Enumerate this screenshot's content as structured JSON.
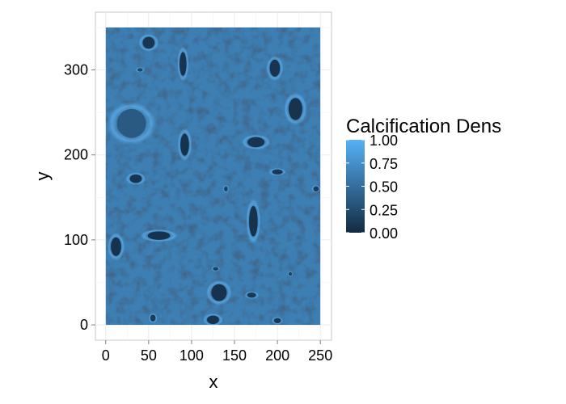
{
  "chart_data": {
    "type": "heatmap",
    "xlabel": "x",
    "ylabel": "y",
    "xlim": [
      -12,
      263
    ],
    "ylim": [
      -18,
      368
    ],
    "raster_extent": {
      "x": [
        0,
        250
      ],
      "y": [
        0,
        350
      ]
    },
    "x_ticks": [
      0,
      50,
      100,
      150,
      200,
      250
    ],
    "x_tick_labels": [
      "0",
      "50",
      "100",
      "150",
      "200",
      "250"
    ],
    "y_ticks": [
      0,
      100,
      200,
      300
    ],
    "y_tick_labels": [
      "0",
      "100",
      "200",
      "300"
    ],
    "grid": true,
    "background_level": 0.62,
    "legend": {
      "title": "Calcification Dens",
      "position": "right",
      "range": [
        0,
        1
      ],
      "breaks": [
        1.0,
        0.75,
        0.5,
        0.25,
        0.0
      ],
      "break_labels": [
        "1.00",
        "0.75",
        "0.50",
        "0.25",
        "0.00"
      ],
      "color_low": "#132B43",
      "color_high": "#56B1F7"
    },
    "low_density_regions": [
      {
        "x": 50,
        "y": 332,
        "rx": 7,
        "ry": 7,
        "value": 0.08
      },
      {
        "x": 90,
        "y": 307,
        "rx": 4,
        "ry": 14,
        "value": 0.06
      },
      {
        "x": 40,
        "y": 300,
        "rx": 3,
        "ry": 2,
        "value": 0.2
      },
      {
        "x": 197,
        "y": 302,
        "rx": 6,
        "ry": 10,
        "value": 0.07
      },
      {
        "x": 221,
        "y": 254,
        "rx": 8,
        "ry": 13,
        "value": 0.06
      },
      {
        "x": 30,
        "y": 237,
        "rx": 17,
        "ry": 17,
        "value": 0.35
      },
      {
        "x": 92,
        "y": 212,
        "rx": 5,
        "ry": 13,
        "value": 0.05
      },
      {
        "x": 175,
        "y": 215,
        "rx": 10,
        "ry": 6,
        "value": 0.07
      },
      {
        "x": 200,
        "y": 180,
        "rx": 6,
        "ry": 3,
        "value": 0.1
      },
      {
        "x": 35,
        "y": 172,
        "rx": 7,
        "ry": 5,
        "value": 0.07
      },
      {
        "x": 245,
        "y": 160,
        "rx": 3,
        "ry": 3,
        "value": 0.12
      },
      {
        "x": 172,
        "y": 122,
        "rx": 5,
        "ry": 18,
        "value": 0.05
      },
      {
        "x": 62,
        "y": 105,
        "rx": 13,
        "ry": 5,
        "value": 0.05
      },
      {
        "x": 12,
        "y": 92,
        "rx": 6,
        "ry": 11,
        "value": 0.05
      },
      {
        "x": 132,
        "y": 38,
        "rx": 9,
        "ry": 10,
        "value": 0.05
      },
      {
        "x": 170,
        "y": 35,
        "rx": 5,
        "ry": 3,
        "value": 0.1
      },
      {
        "x": 125,
        "y": 6,
        "rx": 7,
        "ry": 5,
        "value": 0.06
      },
      {
        "x": 200,
        "y": 5,
        "rx": 4,
        "ry": 3,
        "value": 0.1
      },
      {
        "x": 55,
        "y": 8,
        "rx": 3,
        "ry": 4,
        "value": 0.12
      },
      {
        "x": 128,
        "y": 66,
        "rx": 3,
        "ry": 2,
        "value": 0.15
      },
      {
        "x": 140,
        "y": 160,
        "rx": 2,
        "ry": 3,
        "value": 0.15
      },
      {
        "x": 215,
        "y": 60,
        "rx": 2,
        "ry": 2,
        "value": 0.15
      }
    ]
  }
}
